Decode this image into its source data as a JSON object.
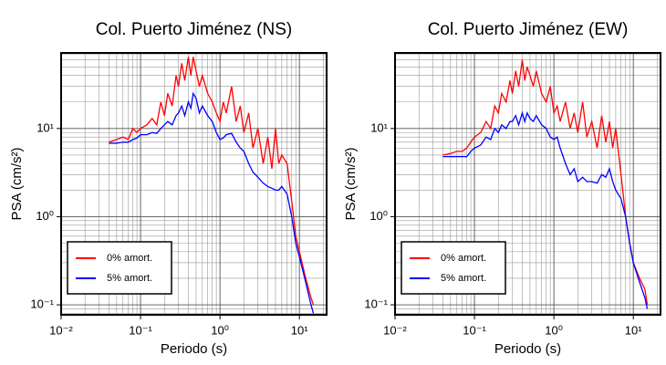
{
  "chart_data": [
    {
      "type": "line",
      "title": "Col. Puerto Jiménez (NS)",
      "x_label": "Periodo (s)",
      "y_label": "PSA (cm/s²)",
      "log_x": true,
      "log_y": true,
      "grid": true,
      "minor_grid": true,
      "legend": "lower left",
      "xlim": [
        0.01,
        22
      ],
      "ylim": [
        0.077,
        72
      ],
      "xticks": [
        {
          "value": 0.01,
          "label": "10⁻²"
        },
        {
          "value": 0.1,
          "label": "10⁻¹"
        },
        {
          "value": 1,
          "label": "10⁰"
        },
        {
          "value": 10,
          "label": "10¹"
        }
      ],
      "yticks": [
        {
          "value": 0.1,
          "label": "10⁻¹"
        },
        {
          "value": 1,
          "label": "10⁰"
        },
        {
          "value": 10,
          "label": "10¹"
        }
      ],
      "x": [
        0.04,
        0.05,
        0.06,
        0.07,
        0.08,
        0.09,
        0.1,
        0.12,
        0.14,
        0.16,
        0.18,
        0.2,
        0.22,
        0.25,
        0.28,
        0.3,
        0.33,
        0.36,
        0.4,
        0.43,
        0.46,
        0.5,
        0.55,
        0.6,
        0.7,
        0.8,
        0.9,
        1.0,
        1.1,
        1.2,
        1.4,
        1.6,
        1.8,
        2.0,
        2.3,
        2.6,
        3.0,
        3.5,
        4.0,
        4.5,
        5.0,
        5.5,
        6.0,
        7.0,
        8.0,
        9.0,
        10,
        12,
        14,
        15
      ],
      "series": [
        {
          "name": "0% amort.",
          "color": "#ff0000",
          "values": [
            7,
            7.5,
            8,
            7.5,
            10,
            9,
            10,
            11,
            13,
            11,
            20,
            14,
            25,
            18,
            40,
            30,
            55,
            35,
            65,
            40,
            65,
            45,
            30,
            40,
            25,
            20,
            15,
            12,
            20,
            15,
            30,
            12,
            18,
            9,
            15,
            6,
            10,
            4,
            8,
            3.5,
            10,
            4,
            5,
            4,
            1.5,
            0.6,
            0.4,
            0.2,
            0.12,
            0.1
          ]
        },
        {
          "name": "5% amort.",
          "color": "#0000ff",
          "values": [
            6.8,
            6.8,
            7,
            7,
            7.5,
            7.8,
            8.5,
            8.5,
            9,
            8.8,
            10,
            11,
            12,
            11,
            14,
            15,
            18,
            14,
            20,
            17,
            25,
            22,
            15,
            18,
            14,
            12,
            9,
            7.5,
            7.8,
            8.5,
            8.8,
            7,
            6,
            5.5,
            4,
            3.2,
            2.8,
            2.4,
            2.2,
            2.1,
            2,
            2,
            2.2,
            1.8,
            1,
            0.5,
            0.35,
            0.18,
            0.1,
            0.08
          ]
        }
      ]
    },
    {
      "type": "line",
      "title": "Col. Puerto Jiménez (EW)",
      "x_label": "Periodo (s)",
      "y_label": "PSA (cm/s²)",
      "log_x": true,
      "log_y": true,
      "grid": true,
      "minor_grid": true,
      "legend": "lower left",
      "xlim": [
        0.01,
        22
      ],
      "ylim": [
        0.077,
        72
      ],
      "xticks": [
        {
          "value": 0.01,
          "label": "10⁻²"
        },
        {
          "value": 0.1,
          "label": "10⁻¹"
        },
        {
          "value": 1,
          "label": "10⁰"
        },
        {
          "value": 10,
          "label": "10¹"
        }
      ],
      "yticks": [
        {
          "value": 0.1,
          "label": "10⁻¹"
        },
        {
          "value": 1,
          "label": "10⁰"
        },
        {
          "value": 10,
          "label": "10¹"
        }
      ],
      "x": [
        0.04,
        0.05,
        0.06,
        0.07,
        0.08,
        0.09,
        0.1,
        0.12,
        0.14,
        0.16,
        0.18,
        0.2,
        0.22,
        0.25,
        0.28,
        0.3,
        0.33,
        0.36,
        0.4,
        0.43,
        0.46,
        0.5,
        0.55,
        0.6,
        0.7,
        0.8,
        0.9,
        1.0,
        1.1,
        1.2,
        1.4,
        1.6,
        1.8,
        2.0,
        2.3,
        2.6,
        3.0,
        3.5,
        4.0,
        4.5,
        5.0,
        5.5,
        6.0,
        7.0,
        8.0,
        9.0,
        10,
        12,
        14,
        15
      ],
      "series": [
        {
          "name": "0% amort.",
          "color": "#ff0000",
          "values": [
            5,
            5.2,
            5.5,
            5.5,
            6,
            7,
            8,
            9,
            12,
            10,
            18,
            15,
            25,
            20,
            35,
            25,
            45,
            30,
            60,
            35,
            50,
            40,
            30,
            45,
            25,
            20,
            30,
            15,
            18,
            12,
            20,
            10,
            15,
            9,
            20,
            8,
            12,
            6,
            14,
            7,
            12,
            6,
            10,
            3,
            1,
            0.5,
            0.3,
            0.2,
            0.15,
            0.1
          ]
        },
        {
          "name": "5% amort.",
          "color": "#0000ff",
          "values": [
            4.8,
            4.8,
            4.8,
            4.8,
            4.8,
            5.5,
            6,
            6.5,
            8,
            7.5,
            10,
            9,
            11,
            10,
            12,
            12,
            14,
            11,
            15,
            12,
            15,
            13,
            12,
            14,
            11,
            10,
            8,
            7.5,
            8,
            6,
            4,
            3,
            3.5,
            2.5,
            2.8,
            2.5,
            2.5,
            2.4,
            3,
            2.8,
            3.5,
            2.5,
            2,
            1.6,
            1,
            0.5,
            0.3,
            0.18,
            0.12,
            0.09
          ]
        }
      ]
    }
  ]
}
